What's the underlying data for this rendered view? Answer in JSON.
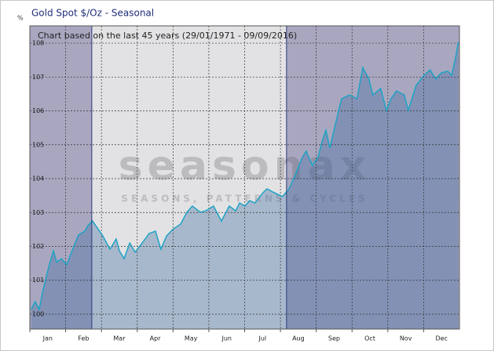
{
  "chart_data": {
    "type": "area-line",
    "title": "Gold Spot   $/Oz - Seasonal",
    "annotation": "Chart based on the last 45 years (29/01/1971 - 09/09/2016)",
    "y_label": "%",
    "categories": [
      "Jan",
      "Feb",
      "Mar",
      "Apr",
      "May",
      "Jun",
      "Jul",
      "Aug",
      "Sep",
      "Oct",
      "Nov",
      "Dec"
    ],
    "xlim": [
      0,
      12
    ],
    "ylim": [
      99.56,
      108.51
    ],
    "yticks": [
      100,
      101,
      102,
      103,
      104,
      105,
      106,
      107,
      108
    ],
    "grid": true,
    "periods": [
      {
        "start": 0,
        "end": 1.73,
        "color": "#a9a7c0"
      },
      {
        "start": 1.73,
        "end": 7.17,
        "color": "#e2e2e4"
      },
      {
        "start": 7.17,
        "end": 12,
        "color": "#a9a7c0"
      }
    ],
    "series": [
      {
        "color": "#1ea3c4",
        "x": [
          0.04,
          0.15,
          0.26,
          0.37,
          0.53,
          0.66,
          0.75,
          0.88,
          1.03,
          1.18,
          1.36,
          1.54,
          1.62,
          1.75,
          1.84,
          2.02,
          2.24,
          2.41,
          2.5,
          2.63,
          2.79,
          2.94,
          3.11,
          3.33,
          3.51,
          3.66,
          3.82,
          3.99,
          4.21,
          4.39,
          4.54,
          4.76,
          4.91,
          5.13,
          5.35,
          5.57,
          5.75,
          5.86,
          6.01,
          6.14,
          6.29,
          6.51,
          6.62,
          6.84,
          7.06,
          7.24,
          7.39,
          7.61,
          7.72,
          7.89,
          8.05,
          8.16,
          8.27,
          8.38,
          8.6,
          8.71,
          8.93,
          9.14,
          9.3,
          9.47,
          9.58,
          9.8,
          9.96,
          10.09,
          10.24,
          10.46,
          10.57,
          10.79,
          11.01,
          11.18,
          11.34,
          11.49,
          11.67,
          11.78,
          11.89,
          11.97
        ],
        "values": [
          100.14,
          100.37,
          100.14,
          100.72,
          101.41,
          101.87,
          101.53,
          101.64,
          101.46,
          101.87,
          102.34,
          102.45,
          102.61,
          102.75,
          102.61,
          102.34,
          101.92,
          102.22,
          101.87,
          101.64,
          102.1,
          101.83,
          102.06,
          102.38,
          102.45,
          101.92,
          102.31,
          102.5,
          102.66,
          103.01,
          103.19,
          103.01,
          103.05,
          103.19,
          102.75,
          103.19,
          103.05,
          103.28,
          103.19,
          103.35,
          103.28,
          103.58,
          103.7,
          103.58,
          103.47,
          103.7,
          104.05,
          104.63,
          104.81,
          104.39,
          104.62,
          105.09,
          105.43,
          104.9,
          105.9,
          106.36,
          106.47,
          106.36,
          107.28,
          106.94,
          106.47,
          106.66,
          106.01,
          106.36,
          106.59,
          106.47,
          106.01,
          106.75,
          107.05,
          107.21,
          106.94,
          107.12,
          107.17,
          107.05,
          107.56,
          108.03
        ]
      }
    ]
  },
  "watermark": [
    "seasonax",
    "SEASONS, PATTERNS & CYCLES"
  ]
}
